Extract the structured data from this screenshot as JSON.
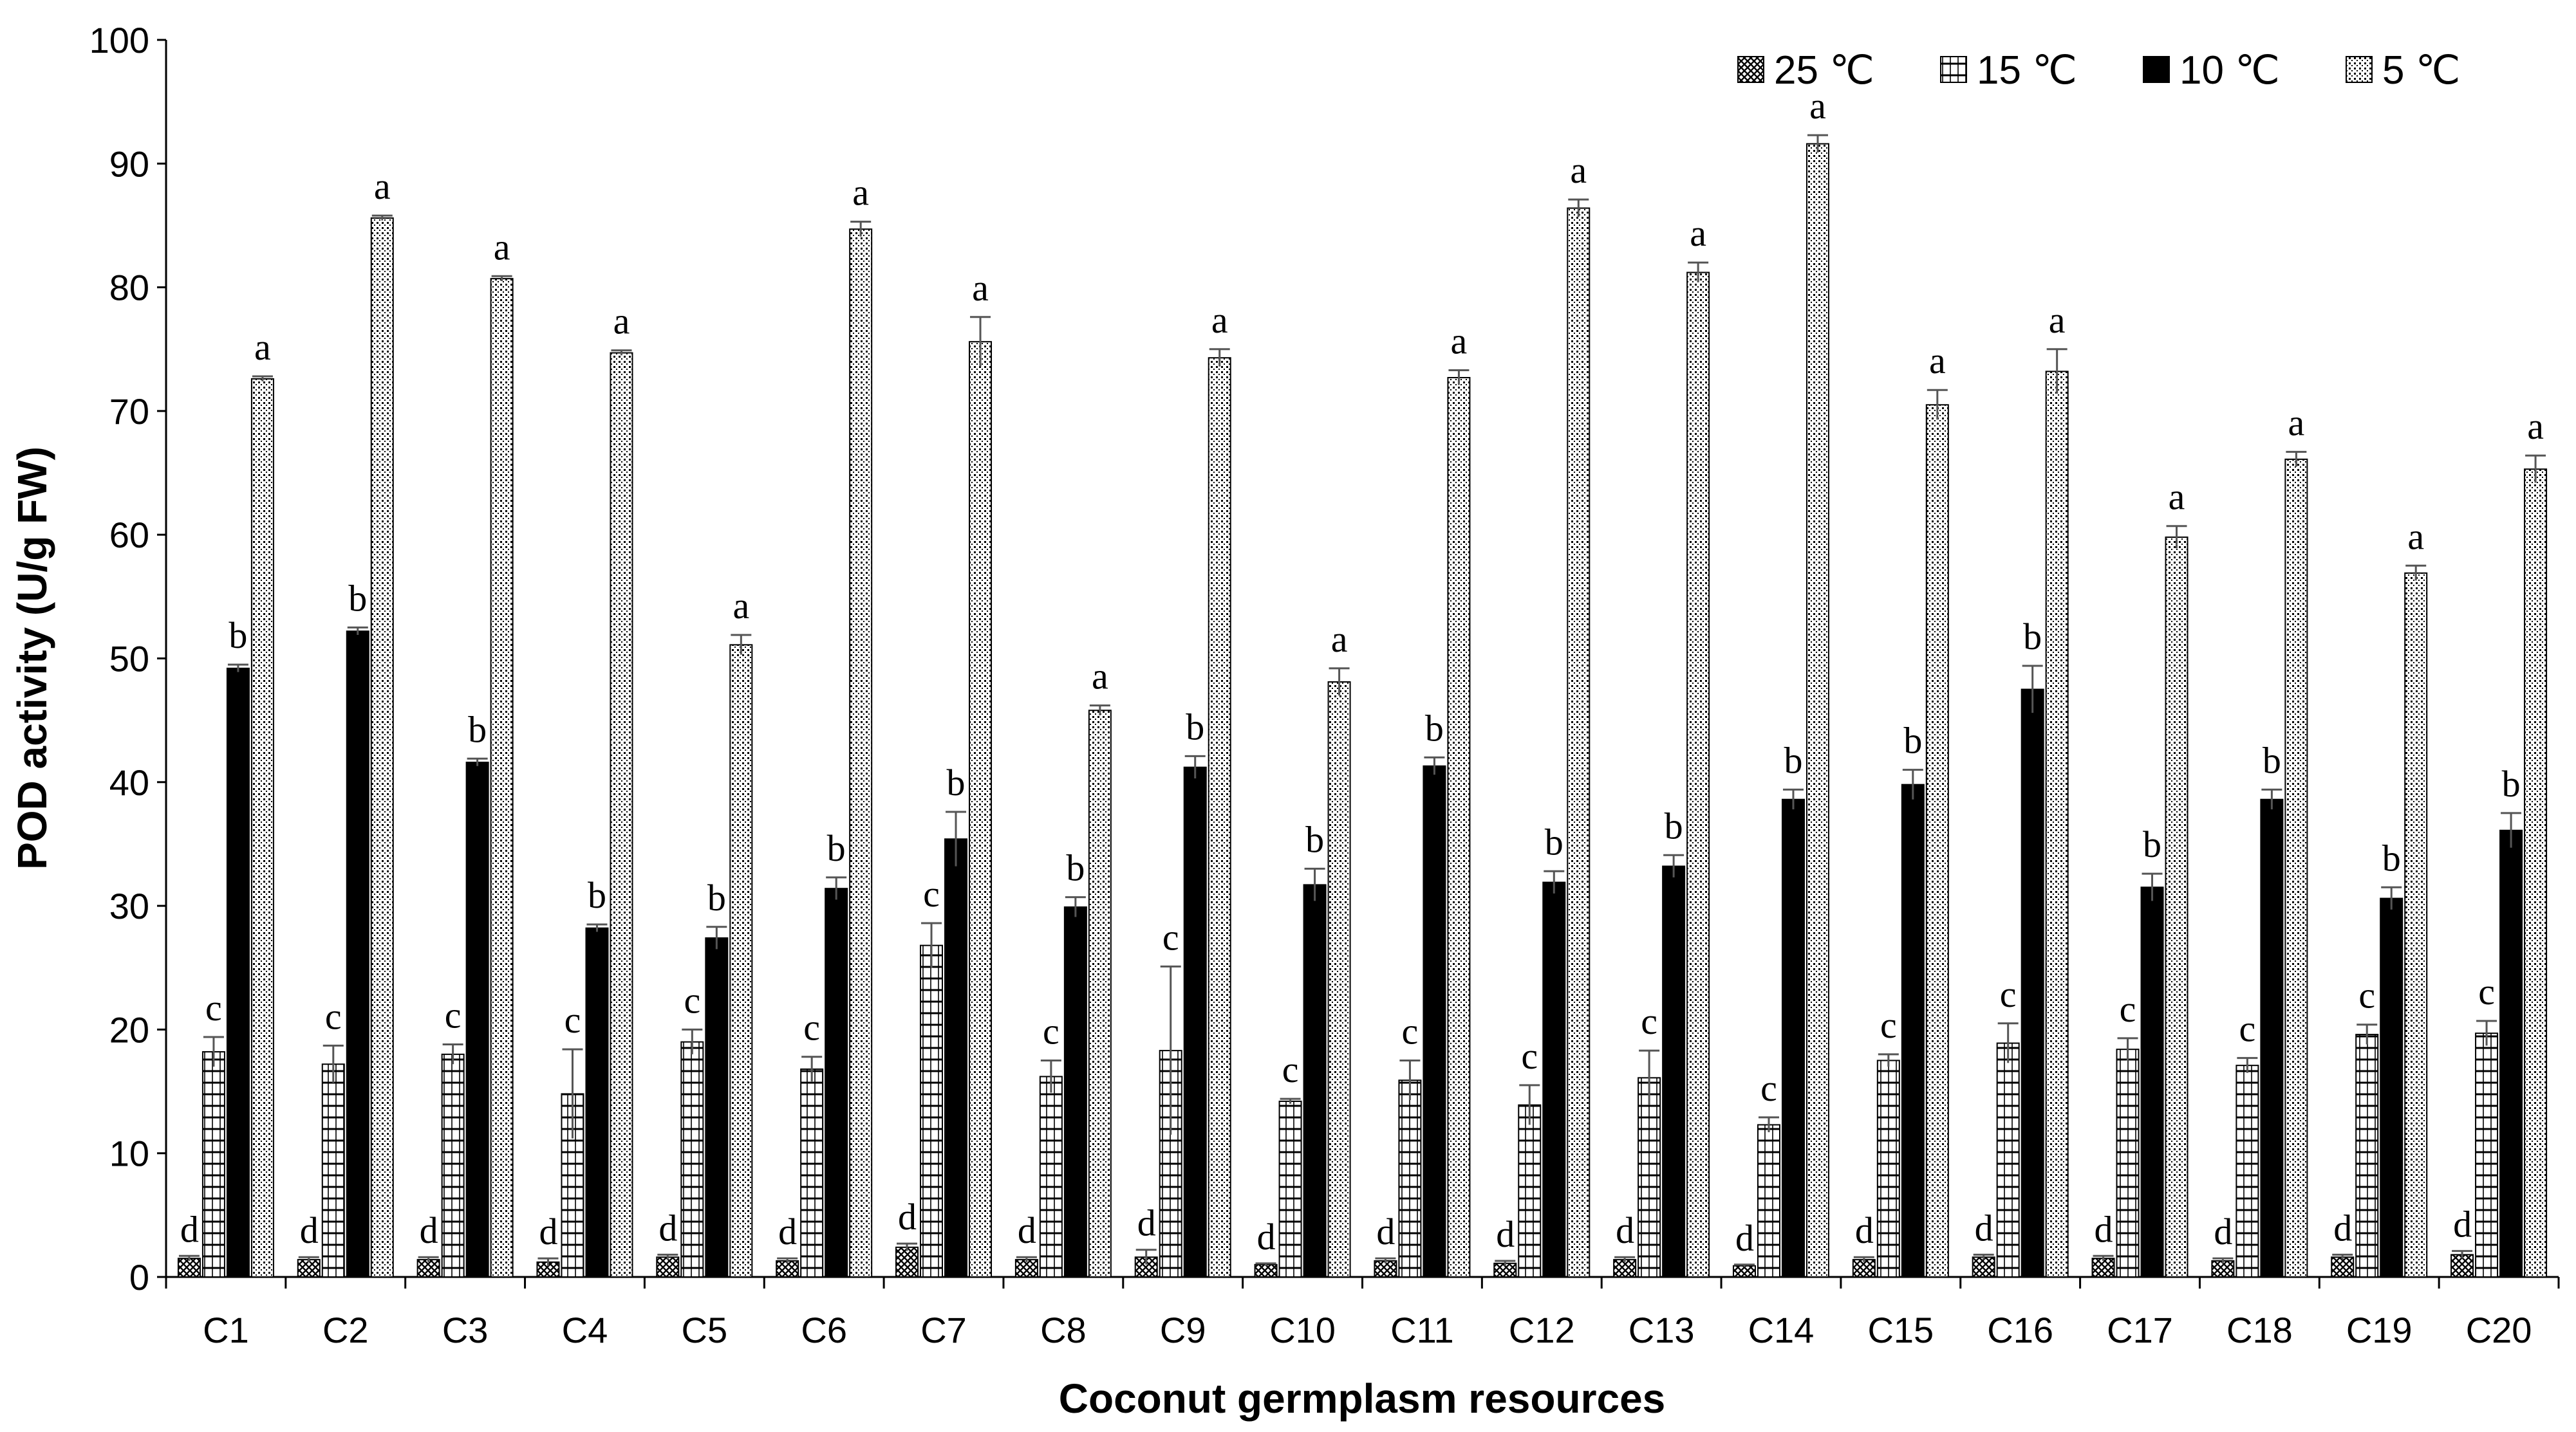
{
  "chart_data": {
    "type": "bar",
    "xlabel": "Coconut germplasm resources",
    "ylabel": "POD activity (U/g FW)",
    "ylim": [
      0,
      100
    ],
    "yticks": [
      0,
      10,
      20,
      30,
      40,
      50,
      60,
      70,
      80,
      90,
      100
    ],
    "grid": false,
    "legend_position": "top-right",
    "categories": [
      "C1",
      "C2",
      "C3",
      "C4",
      "C5",
      "C6",
      "C7",
      "C8",
      "C9",
      "C10",
      "C11",
      "C12",
      "C13",
      "C14",
      "C15",
      "C16",
      "C17",
      "C18",
      "C19",
      "C20"
    ],
    "series": [
      {
        "name": "25 ℃",
        "pattern": "crosshatch",
        "values": [
          1.5,
          1.4,
          1.4,
          1.2,
          1.6,
          1.3,
          2.4,
          1.4,
          1.6,
          1.0,
          1.3,
          1.1,
          1.4,
          0.9,
          1.4,
          1.6,
          1.5,
          1.3,
          1.6,
          1.8
        ],
        "errors": [
          0.2,
          0.2,
          0.2,
          0.3,
          0.2,
          0.2,
          0.3,
          0.2,
          0.6,
          0.1,
          0.2,
          0.2,
          0.2,
          0.1,
          0.2,
          0.2,
          0.2,
          0.2,
          0.2,
          0.3
        ],
        "letters": [
          "d",
          "d",
          "d",
          "d",
          "d",
          "d",
          "d",
          "d",
          "d",
          "d",
          "d",
          "d",
          "d",
          "d",
          "d",
          "d",
          "d",
          "d",
          "d",
          "d"
        ]
      },
      {
        "name": "15 ℃",
        "pattern": "horizontal-lines",
        "values": [
          18.2,
          17.2,
          18.0,
          14.8,
          19.0,
          16.8,
          26.8,
          16.2,
          18.3,
          14.2,
          15.9,
          13.9,
          16.1,
          12.3,
          17.5,
          18.9,
          18.4,
          17.1,
          19.6,
          19.7
        ],
        "errors": [
          1.2,
          1.5,
          0.8,
          3.6,
          1.0,
          1.0,
          1.8,
          1.3,
          6.8,
          0.2,
          1.6,
          1.6,
          2.2,
          0.6,
          0.5,
          1.6,
          0.9,
          0.6,
          0.8,
          1.0
        ],
        "letters": [
          "c",
          "c",
          "c",
          "c",
          "c",
          "c",
          "c",
          "c",
          "c",
          "c",
          "c",
          "c",
          "c",
          "c",
          "c",
          "c",
          "c",
          "c",
          "c",
          "c"
        ]
      },
      {
        "name": "10 ℃",
        "pattern": "solid",
        "values": [
          49.2,
          52.2,
          41.6,
          28.2,
          27.4,
          31.4,
          35.4,
          29.9,
          41.2,
          31.7,
          41.3,
          31.9,
          33.2,
          38.6,
          39.8,
          47.5,
          31.5,
          38.6,
          30.6,
          36.1
        ],
        "errors": [
          0.3,
          0.3,
          0.3,
          0.3,
          0.9,
          0.9,
          2.2,
          0.8,
          0.9,
          1.3,
          0.7,
          0.9,
          0.9,
          0.8,
          1.2,
          1.9,
          1.1,
          0.8,
          0.9,
          1.4
        ],
        "letters": [
          "b",
          "b",
          "b",
          "b",
          "b",
          "b",
          "b",
          "b",
          "b",
          "b",
          "b",
          "b",
          "b",
          "b",
          "b",
          "b",
          "b",
          "b",
          "b",
          "b"
        ]
      },
      {
        "name": "5 ℃",
        "pattern": "dots",
        "values": [
          72.6,
          85.6,
          80.7,
          74.7,
          51.1,
          84.7,
          75.6,
          45.8,
          74.3,
          48.1,
          72.7,
          86.4,
          81.2,
          91.6,
          70.5,
          73.2,
          59.8,
          66.1,
          56.9,
          65.3
        ],
        "errors": [
          0.2,
          0.2,
          0.2,
          0.2,
          0.8,
          0.6,
          2.0,
          0.4,
          0.7,
          1.1,
          0.6,
          0.7,
          0.8,
          0.7,
          1.2,
          1.8,
          0.9,
          0.6,
          0.6,
          1.1
        ],
        "letters": [
          "a",
          "a",
          "a",
          "a",
          "a",
          "a",
          "a",
          "a",
          "a",
          "a",
          "a",
          "a",
          "a",
          "a",
          "a",
          "a",
          "a",
          "a",
          "a",
          "a"
        ]
      }
    ]
  }
}
